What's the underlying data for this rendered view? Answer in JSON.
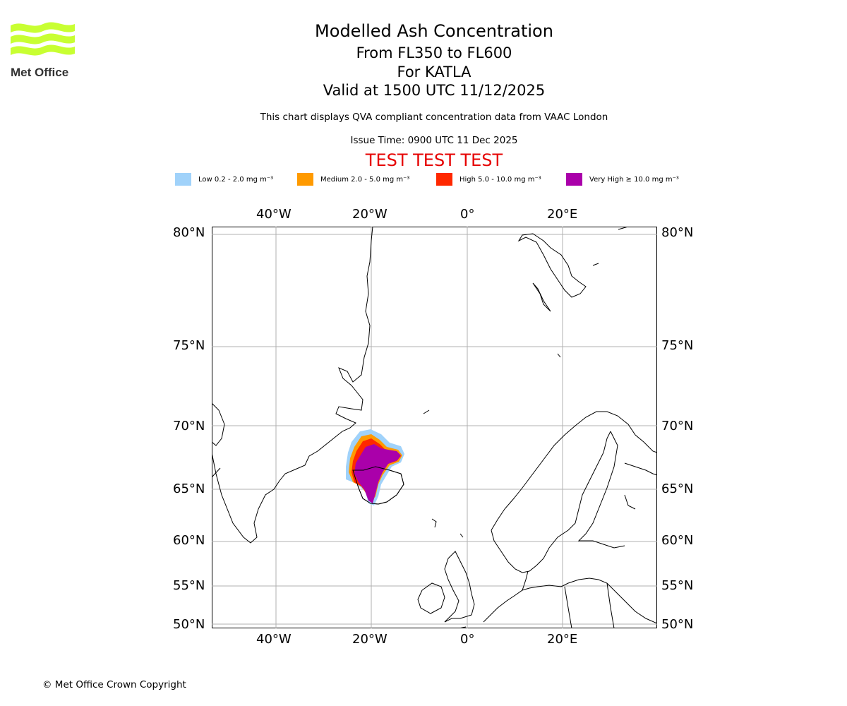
{
  "header": {
    "title": "Modelled Ash Concentration",
    "flight_levels": "From FL350 to FL600",
    "volcano": "For KATLA",
    "valid_time": "Valid at 1500 UTC 11/12/2025",
    "subtitle": "This chart displays QVA compliant concentration data from VAAC London",
    "issue_time": "Issue Time: 0900 UTC 11 Dec 2025",
    "banner": "TEST TEST TEST"
  },
  "logo": {
    "text": "Met Office",
    "color": "#c8ff32"
  },
  "legend": [
    {
      "label": "Low 0.2 - 2.0 mg m⁻³",
      "color": "#a0d2fa"
    },
    {
      "label": "Medium 2.0 - 5.0 mg m⁻³",
      "color": "#ff9a00"
    },
    {
      "label": "High 5.0 - 10.0 mg m⁻³",
      "color": "#ff2800"
    },
    {
      "label": "Very High ≥ 10.0 mg m⁻³",
      "color": "#aa00aa"
    }
  ],
  "axes": {
    "longitude_labels": [
      "40°W",
      "20°W",
      "0°",
      "20°E"
    ],
    "latitude_labels": [
      "80°N",
      "75°N",
      "70°N",
      "65°N",
      "60°N",
      "55°N",
      "50°N"
    ]
  },
  "footer": {
    "copyright": "© Met Office Crown Copyright"
  }
}
